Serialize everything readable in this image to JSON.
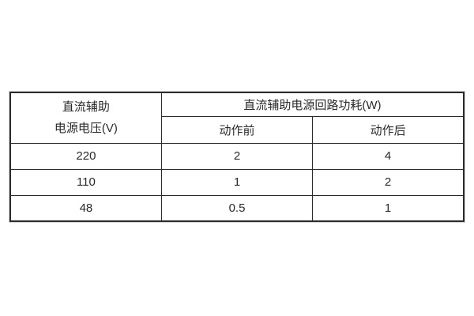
{
  "page": {
    "background": "#ffffff"
  },
  "table": {
    "border_color": "#2b2b2b",
    "text_color": "#2a2a2a",
    "header": {
      "voltage_line1": "直流辅助",
      "voltage_line2": "电源电压(V)",
      "power_span_title": "直流辅助电源回路功耗(W)",
      "sub_before": "动作前",
      "sub_after": "动作后"
    },
    "rows": [
      {
        "voltage": "220",
        "before": "2",
        "after": "4"
      },
      {
        "voltage": "110",
        "before": "1",
        "after": "2"
      },
      {
        "voltage": "48",
        "before": "0.5",
        "after": "1"
      }
    ]
  }
}
